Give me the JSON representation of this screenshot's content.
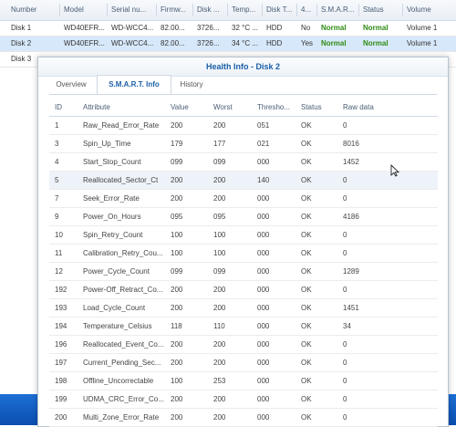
{
  "disk_table": {
    "columns": [
      "Number",
      "Model",
      "Serial nu...",
      "Firmw...",
      "Disk ...",
      "Temp...",
      "Disk T...",
      "4...",
      "S.M.A.R...",
      "Status",
      "Volume"
    ],
    "rows": [
      [
        "Disk 1",
        "WD40EFR...",
        "WD-WCC4...",
        "82.00...",
        "3726...",
        "32 °C ...",
        "HDD",
        "No",
        "Normal",
        "Normal",
        "Volume 1"
      ],
      [
        "Disk 2",
        "WD40EFR...",
        "WD-WCC4...",
        "82.00...",
        "3726...",
        "34 °C ...",
        "HDD",
        "Yes",
        "Normal",
        "Normal",
        "Volume 1"
      ],
      [
        "Disk 3"
      ]
    ],
    "selected_row": 1
  },
  "dialog": {
    "title": "Health Info - Disk 2",
    "tabs": [
      "Overview",
      "S.M.A.R.T. Info",
      "History"
    ],
    "active_tab": 1
  },
  "smart_table": {
    "columns": [
      "ID",
      "Attribute",
      "Value",
      "Worst",
      "Thresho...",
      "Status",
      "Raw data"
    ],
    "rows": [
      [
        "1",
        "Raw_Read_Error_Rate",
        "200",
        "200",
        "051",
        "OK",
        "0"
      ],
      [
        "3",
        "Spin_Up_Time",
        "179",
        "177",
        "021",
        "OK",
        "8016"
      ],
      [
        "4",
        "Start_Stop_Count",
        "099",
        "099",
        "000",
        "OK",
        "1452"
      ],
      [
        "5",
        "Reallocated_Sector_Ct",
        "200",
        "200",
        "140",
        "OK",
        "0"
      ],
      [
        "7",
        "Seek_Error_Rate",
        "200",
        "200",
        "000",
        "OK",
        "0"
      ],
      [
        "9",
        "Power_On_Hours",
        "095",
        "095",
        "000",
        "OK",
        "4186"
      ],
      [
        "10",
        "Spin_Retry_Count",
        "100",
        "100",
        "000",
        "OK",
        "0"
      ],
      [
        "11",
        "Calibration_Retry_Cou...",
        "100",
        "100",
        "000",
        "OK",
        "0"
      ],
      [
        "12",
        "Power_Cycle_Count",
        "099",
        "099",
        "000",
        "OK",
        "1289"
      ],
      [
        "192",
        "Power-Off_Retract_Co...",
        "200",
        "200",
        "000",
        "OK",
        "0"
      ],
      [
        "193",
        "Load_Cycle_Count",
        "200",
        "200",
        "000",
        "OK",
        "1451"
      ],
      [
        "194",
        "Temperature_Celsius",
        "118",
        "110",
        "000",
        "OK",
        "34"
      ],
      [
        "196",
        "Reallocated_Event_Co...",
        "200",
        "200",
        "000",
        "OK",
        "0"
      ],
      [
        "197",
        "Current_Pending_Sec...",
        "200",
        "200",
        "000",
        "OK",
        "0"
      ],
      [
        "198",
        "Offline_Uncorrectable",
        "100",
        "253",
        "000",
        "OK",
        "0"
      ],
      [
        "199",
        "UDMA_CRC_Error_Co...",
        "200",
        "200",
        "000",
        "OK",
        "0"
      ],
      [
        "200",
        "Multi_Zone_Error_Rate",
        "200",
        "200",
        "000",
        "OK",
        "0"
      ]
    ],
    "highlighted_row": 3
  },
  "icons": {
    "cursor": "mouse-pointer-icon"
  },
  "colors": {
    "title": "#1a5fa8",
    "normal_status": "#2e8b14",
    "selected_row": "#d7e8fa",
    "taskbar": "#0b4fb0"
  }
}
